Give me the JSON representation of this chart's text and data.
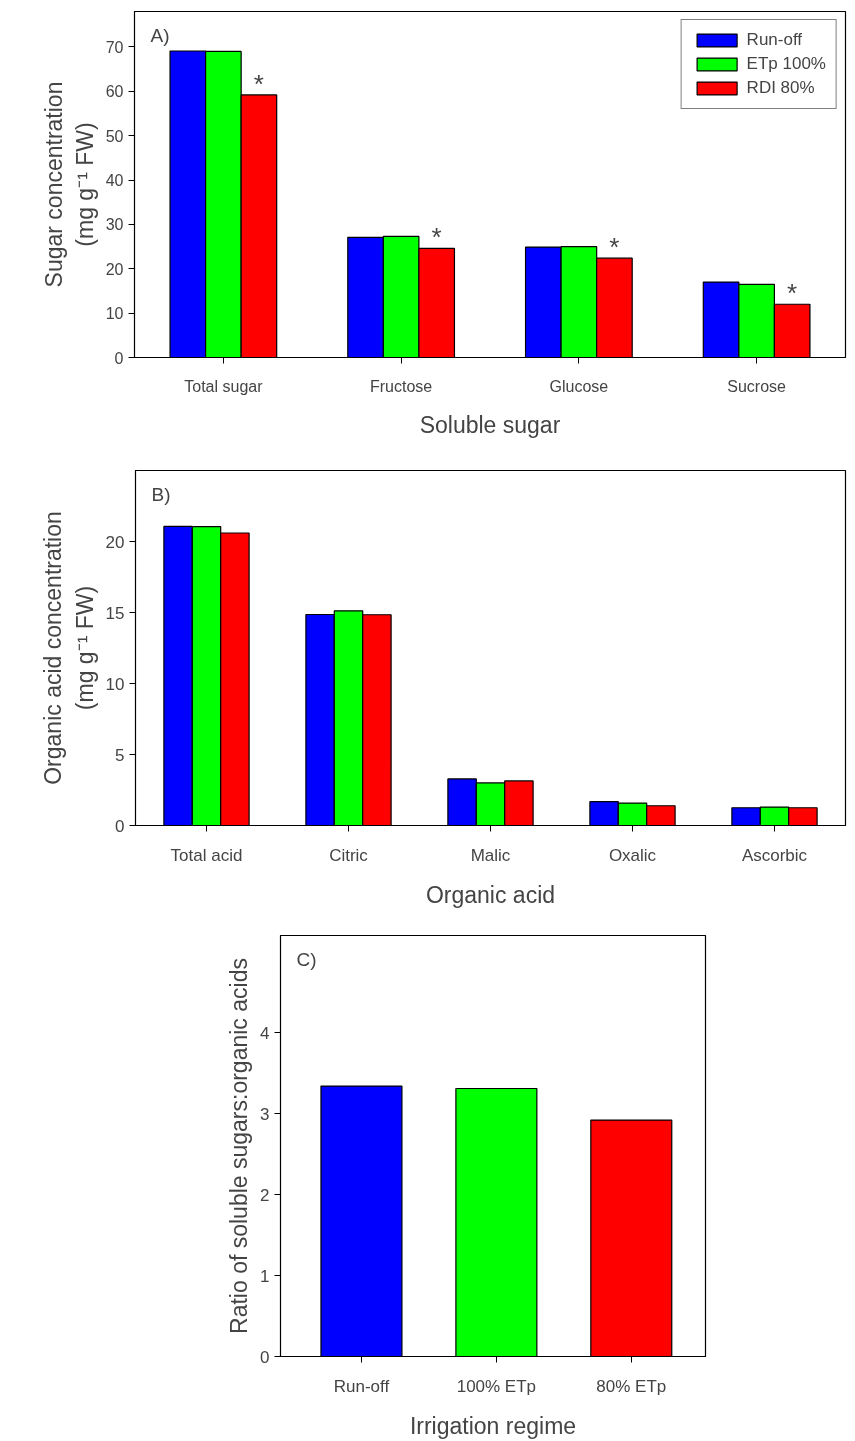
{
  "chart_data": [
    {
      "type": "bar",
      "xlabel": "Soluble sugar",
      "ylabel": "Sugar concentration\n(mg g⁻¹ FW)",
      "categories": [
        "Total sugar",
        "Fructose",
        "Glucose",
        "Sucrose"
      ],
      "series": [
        {
          "name": "Run-off",
          "color": "#0000ff",
          "values": [
            69.1,
            27.1,
            24.9,
            17.0
          ]
        },
        {
          "name": "ETp 100%",
          "color": "#00ff00",
          "values": [
            69.0,
            27.3,
            25.0,
            16.5
          ]
        },
        {
          "name": "RDI 80%",
          "color": "#ff0000",
          "values": [
            59.2,
            24.6,
            22.4,
            12.0
          ]
        }
      ],
      "ylim": [
        0,
        78
      ],
      "yticks": [
        0,
        10,
        20,
        30,
        40,
        50,
        60,
        70
      ],
      "grid": false,
      "legend": "top right",
      "annotations": [
        "A)",
        "*",
        "*",
        "*",
        "*"
      ]
    },
    {
      "type": "bar",
      "xlabel": "Organic acid",
      "ylabel": "Organic acid concentration\n(mg g⁻¹ FW)",
      "categories": [
        "Total acid",
        "Citric",
        "Malic",
        "Oxalic",
        "Ascorbic"
      ],
      "series": [
        {
          "color": "#0000ff",
          "values": [
            21.06,
            14.86,
            3.28,
            1.68,
            1.25
          ]
        },
        {
          "color": "#00ff00",
          "values": [
            21.05,
            15.12,
            3.0,
            1.58,
            1.3
          ]
        },
        {
          "color": "#ff0000",
          "values": [
            20.6,
            14.84,
            3.14,
            1.39,
            1.25
          ]
        }
      ],
      "ylim": [
        0,
        25
      ],
      "yticks": [
        0,
        5,
        10,
        15,
        20
      ],
      "grid": false,
      "legend": false,
      "annotations": [
        "B)"
      ]
    },
    {
      "type": "bar",
      "xlabel": "Irrigation regime",
      "ylabel": "Ratio of soluble sugars:organic acids",
      "categories": [
        "Run-off",
        "100% ETp",
        "80% ETp"
      ],
      "values": [
        3.34,
        3.31,
        2.92
      ],
      "colors": [
        "#0000ff",
        "#00ff00",
        "#ff0000"
      ],
      "ylim": [
        0,
        5.2
      ],
      "yticks": [
        0,
        1,
        2,
        3,
        4
      ],
      "grid": false,
      "legend": false,
      "annotations": [
        "C)"
      ]
    }
  ]
}
